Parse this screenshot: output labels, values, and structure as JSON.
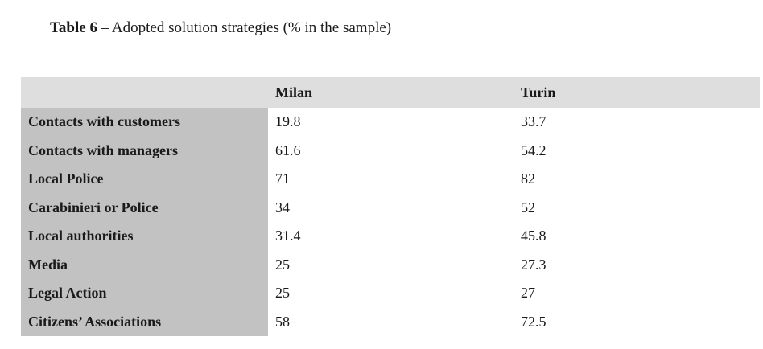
{
  "caption": {
    "label": "Table 6",
    "text": " – Adopted solution strategies (% in the sample)"
  },
  "table": {
    "columns": [
      "",
      "Milan",
      "Turin"
    ],
    "rows": [
      {
        "label": "Contacts with customers",
        "milan": "19.8",
        "turin": "33.7"
      },
      {
        "label": "Contacts with managers",
        "milan": "61.6",
        "turin": "54.2"
      },
      {
        "label": "Local Police",
        "milan": "71",
        "turin": "82"
      },
      {
        "label": "Carabinieri or Police",
        "milan": "34",
        "turin": "52"
      },
      {
        "label": "Local authorities",
        "milan": "31.4",
        "turin": "45.8"
      },
      {
        "label": "Media",
        "milan": "25",
        "turin": "27.3"
      },
      {
        "label": "Legal Action",
        "milan": "25",
        "turin": "27"
      },
      {
        "label": "Citizens’ Associations",
        "milan": "58",
        "turin": "72.5"
      }
    ]
  },
  "colors": {
    "header_bg": "#dedede",
    "row_label_bg": "#c2c2c2",
    "value_bg": "#ffffff",
    "text": "#1a1a1a"
  }
}
